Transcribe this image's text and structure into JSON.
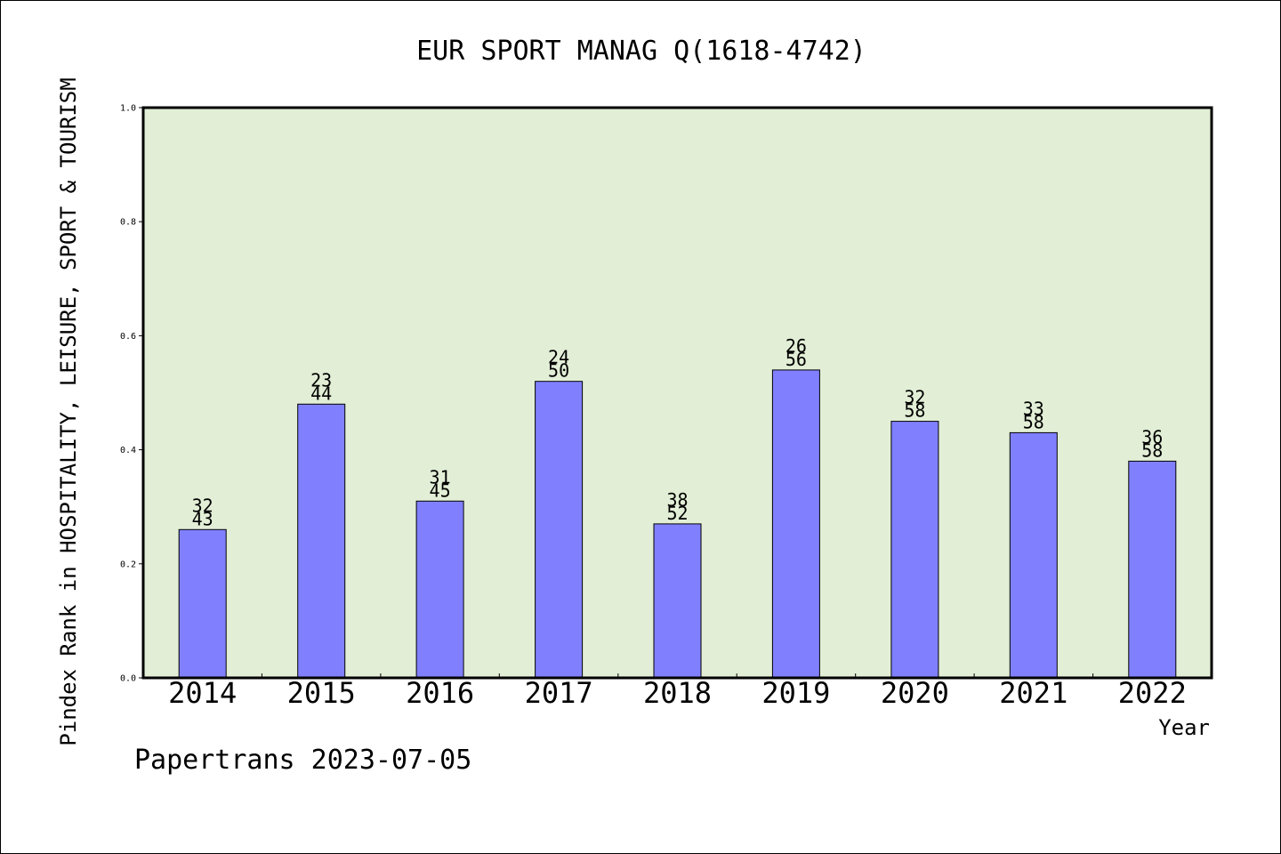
{
  "colors": {
    "plot_background": "#e2efd6",
    "bar_fill": "#8080ff",
    "bar_stroke": "#000000",
    "axis": "#000000"
  },
  "footer_text": "Papertrans 2023-07-05",
  "chart_data": {
    "type": "bar",
    "title": "EUR SPORT MANAG Q(1618-4742)",
    "xlabel": "Year",
    "ylabel": "Pindex Rank in HOSPITALITY, LEISURE, SPORT & TOURISM",
    "ylim": [
      0,
      1.0
    ],
    "yticks": [
      "0.0",
      "0.2",
      "0.4",
      "0.6",
      "0.8",
      "1.0"
    ],
    "categories": [
      "2014",
      "2015",
      "2016",
      "2017",
      "2018",
      "2019",
      "2020",
      "2021",
      "2022"
    ],
    "values": [
      0.26,
      0.48,
      0.31,
      0.52,
      0.27,
      0.54,
      0.45,
      0.43,
      0.38
    ],
    "rank_labels": [
      "32",
      "23",
      "31",
      "24",
      "38",
      "26",
      "32",
      "33",
      "36"
    ],
    "total_labels": [
      "43",
      "44",
      "45",
      "50",
      "52",
      "56",
      "58",
      "58",
      "58"
    ],
    "grid": false,
    "legend": "none"
  }
}
